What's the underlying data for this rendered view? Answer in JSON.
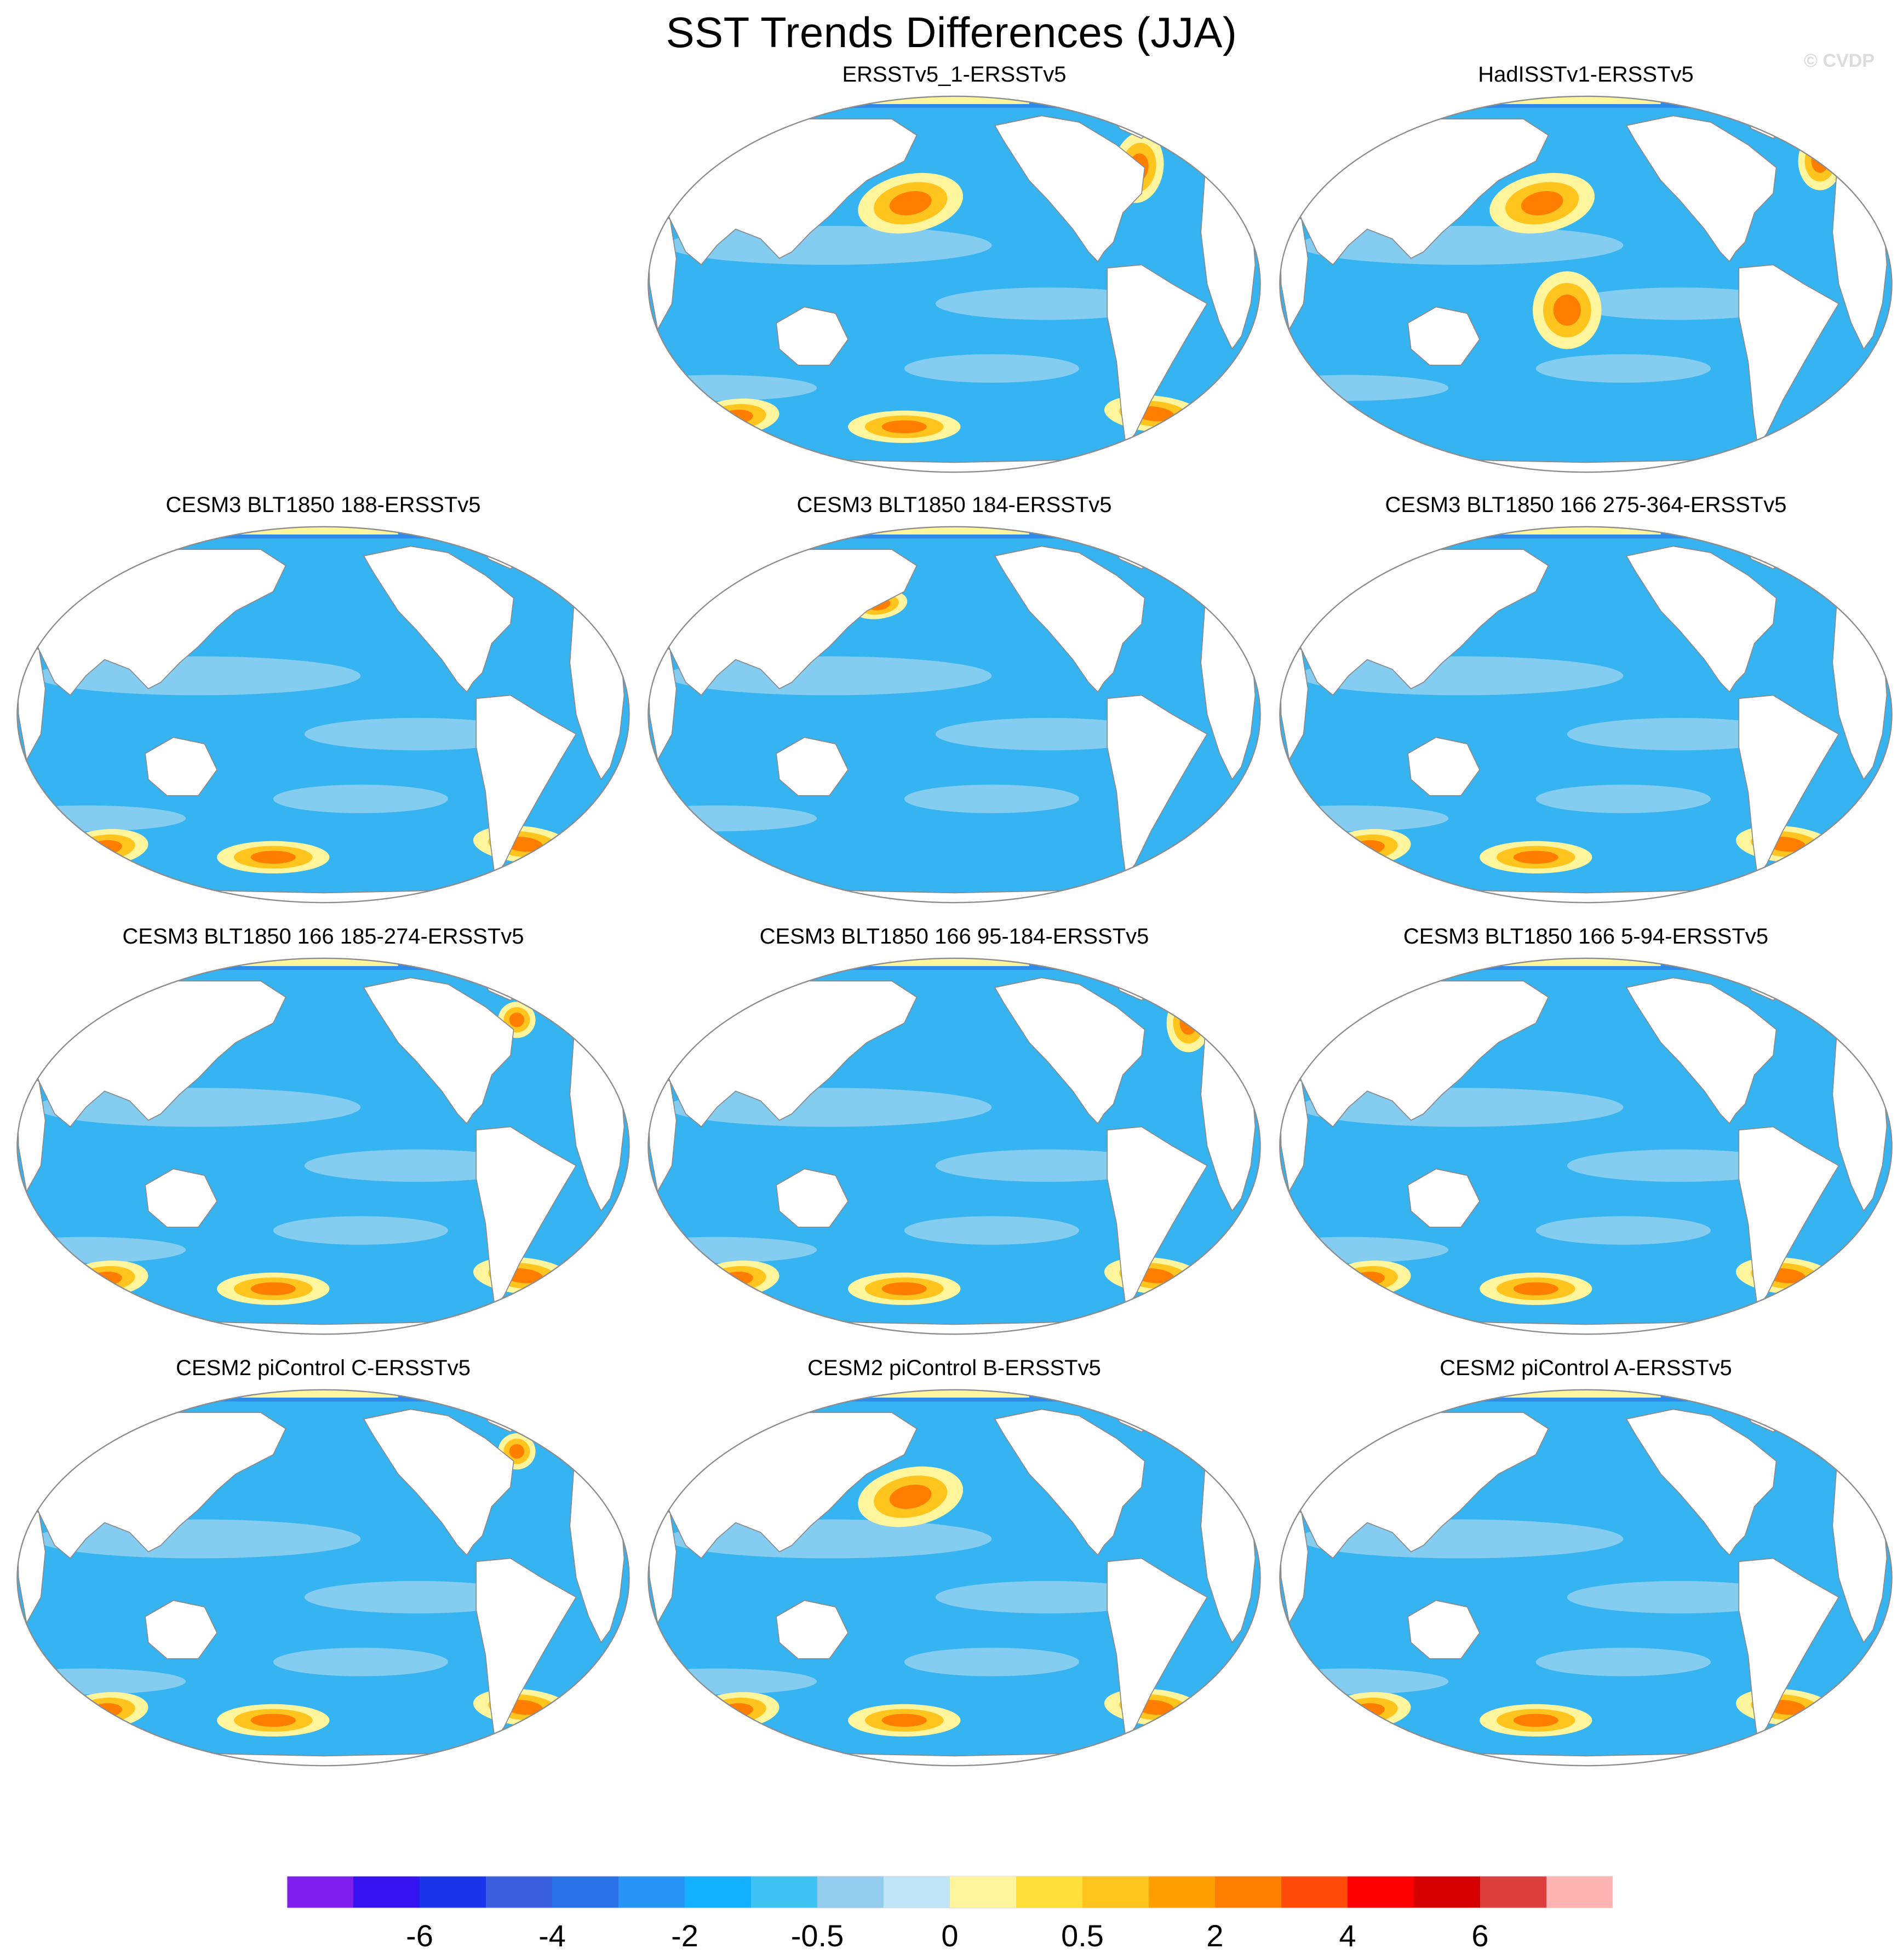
{
  "title": "SST Trends Differences (JJA)",
  "watermark": "© CVDP",
  "colors": {
    "land": "#ffffff",
    "coast": "#8a8a8a",
    "ocean_base": "#36b4f2",
    "ocean_dark": "#2e8ce9",
    "ocean_light": "#9fd4ef"
  },
  "chart_data": {
    "type": "heatmap",
    "title": "SST Trends Differences (JJA)",
    "projection": "Robinson (Pacific-centered)",
    "panels": [
      {
        "id": "p1",
        "label": "ERSSTv5_1-ERSSTv5",
        "row": 0,
        "col": 1,
        "warm_anomalies": [
          "North Pacific",
          "Northwest Atlantic",
          "Southern Ocean"
        ]
      },
      {
        "id": "p2",
        "label": "HadISSTv1-ERSSTv5",
        "row": 0,
        "col": 2,
        "warm_anomalies": [
          "North Pacific",
          "North Atlantic",
          "Central South Pacific"
        ]
      },
      {
        "id": "p3",
        "label": "CESM3 BLT1850 188-ERSSTv5",
        "row": 1,
        "col": 0,
        "warm_anomalies": [
          "Southern Ocean"
        ]
      },
      {
        "id": "p4",
        "label": "CESM3 BLT1850 184-ERSSTv5",
        "row": 1,
        "col": 1,
        "warm_anomalies": [
          "Kuroshio Extension"
        ]
      },
      {
        "id": "p5",
        "label": "CESM3 BLT1850 166 275-364-ERSSTv5",
        "row": 1,
        "col": 2,
        "warm_anomalies": [
          "Southern Ocean"
        ]
      },
      {
        "id": "p6",
        "label": "CESM3 BLT1850 166 185-274-ERSSTv5",
        "row": 2,
        "col": 0,
        "warm_anomalies": [
          "Labrador Sea",
          "Southern Ocean"
        ]
      },
      {
        "id": "p7",
        "label": "CESM3 BLT1850 166 95-184-ERSSTv5",
        "row": 2,
        "col": 1,
        "warm_anomalies": [
          "North Atlantic",
          "Southern Ocean"
        ]
      },
      {
        "id": "p8",
        "label": "CESM3 BLT1850 166 5-94-ERSSTv5",
        "row": 2,
        "col": 2,
        "warm_anomalies": [
          "Southern Ocean"
        ]
      },
      {
        "id": "p9",
        "label": "CESM2 piControl C-ERSSTv5",
        "row": 3,
        "col": 0,
        "warm_anomalies": [
          "Labrador Sea",
          "Southern Ocean"
        ]
      },
      {
        "id": "p10",
        "label": "CESM2 piControl B-ERSSTv5",
        "row": 3,
        "col": 1,
        "warm_anomalies": [
          "North Pacific",
          "Southern Ocean"
        ]
      },
      {
        "id": "p11",
        "label": "CESM2 piControl A-ERSSTv5",
        "row": 3,
        "col": 2,
        "warm_anomalies": [
          "Southern Ocean"
        ]
      }
    ],
    "colorbar": {
      "levels": [
        -8,
        -6,
        -5,
        -4,
        -3,
        -2,
        -1,
        -0.5,
        -0.25,
        0,
        0.25,
        0.5,
        1,
        2,
        3,
        4,
        5,
        6,
        8
      ],
      "tick_labels": [
        "-6",
        "-4",
        "-2",
        "-0.5",
        "0",
        "0.5",
        "2",
        "4",
        "6"
      ],
      "colors": [
        "#7f1fee",
        "#3612f0",
        "#1a34ea",
        "#3a5fdc",
        "#2c72e7",
        "#2693f5",
        "#13b0ff",
        "#3ec2f4",
        "#93ccec",
        "#bfe4f5",
        "#fff59d",
        "#ffe03a",
        "#ffc51e",
        "#ffa000",
        "#ff7e00",
        "#ff4a0a",
        "#ff0000",
        "#d40000",
        "#dd3f3f",
        "#ffb4b4"
      ]
    }
  }
}
